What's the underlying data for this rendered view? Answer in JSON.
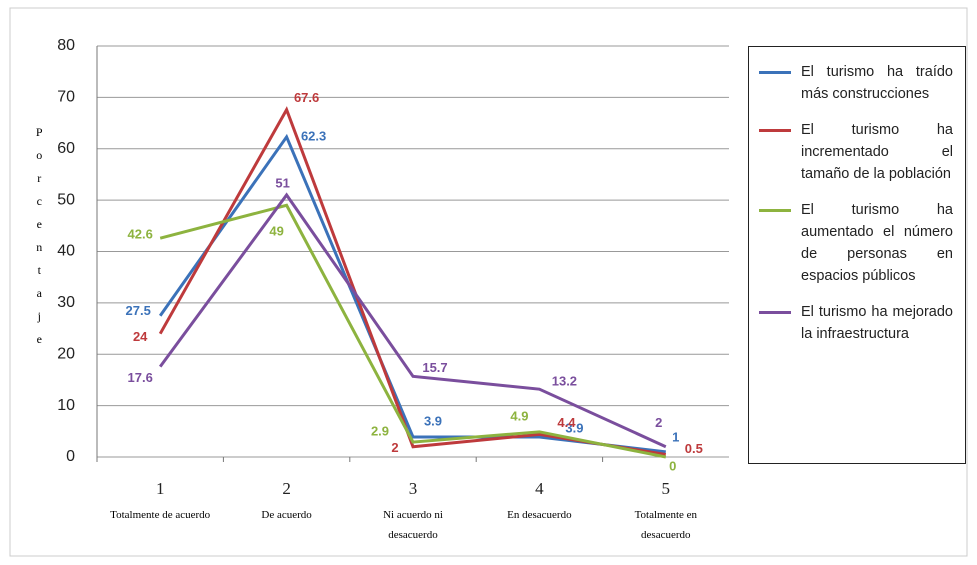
{
  "chart_data": {
    "type": "line",
    "y_label": "Porcentaje",
    "categories": [
      "1",
      "2",
      "3",
      "4",
      "5"
    ],
    "category_labels": [
      "Totalmente de acuerdo",
      "De acuerdo",
      "Ni acuerdo ni desacuerdo",
      "En desacuerdo",
      "Totalmente en desacuerdo"
    ],
    "series": [
      {
        "name": "El turismo ha traído más construcciones",
        "color": "#3b72b9",
        "values": [
          27.5,
          62.3,
          3.9,
          3.9,
          1
        ]
      },
      {
        "name": "El turismo ha incrementado el tamaño de la población",
        "color": "#be3a3c",
        "values": [
          24,
          67.6,
          2,
          4.4,
          0.5
        ]
      },
      {
        "name": "El turismo ha aumentado el número de personas en espacios públicos",
        "color": "#8db33f",
        "values": [
          42.6,
          49,
          2.9,
          4.9,
          0
        ]
      },
      {
        "name": "El turismo ha mejorado la infraestructura",
        "color": "#7a4e9d",
        "values": [
          17.6,
          51,
          15.7,
          13.2,
          2
        ]
      }
    ],
    "ylim": [
      0,
      80
    ],
    "yticks": [
      0,
      10,
      20,
      30,
      40,
      50,
      60,
      70,
      80
    ],
    "grid": true,
    "legend": "right"
  }
}
